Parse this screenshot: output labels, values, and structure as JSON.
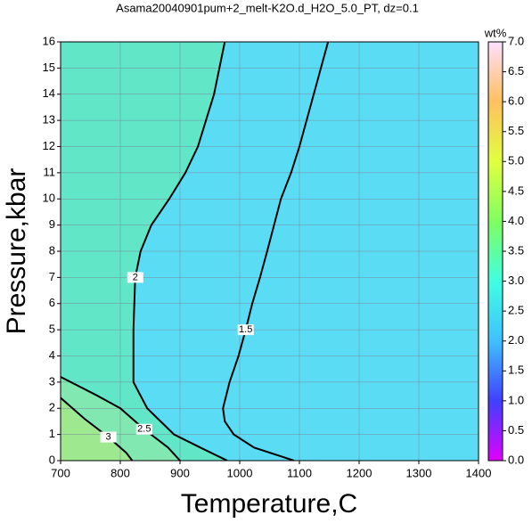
{
  "chart_data": {
    "type": "contour",
    "title": "Asama20040901pum+2_melt-K2O.d_H2O_5.0_PT, dz=0.1",
    "x_label": "Temperature,C",
    "y_label": "Pressure,kbar",
    "xlim": [
      700,
      1400
    ],
    "xticks": [
      700,
      800,
      900,
      1000,
      1100,
      1200,
      1300,
      1400
    ],
    "ylim": [
      0,
      16
    ],
    "yticks": [
      0,
      1,
      2,
      3,
      4,
      5,
      6,
      7,
      8,
      9,
      10,
      11,
      12,
      13,
      14,
      15,
      16
    ],
    "grid": true,
    "contours": [
      {
        "level": 1.5,
        "color": "#62b2ef",
        "x": [
          1148,
          1100,
          1086,
          1069,
          1046,
          1034,
          1021,
          1010,
          998,
          983,
          972,
          975,
          990,
          1024,
          1091
        ],
        "y": [
          16,
          12,
          11,
          10,
          8,
          7,
          6,
          5,
          4,
          3,
          2,
          1.5,
          1,
          0.5,
          0
        ]
      },
      {
        "level": 2,
        "color": "#5adcf5",
        "x": [
          975,
          957,
          930,
          909,
          882,
          852,
          834,
          825,
          822,
          822,
          845,
          890,
          934,
          979
        ],
        "y": [
          16,
          14,
          12,
          11,
          10,
          9,
          8,
          7,
          5,
          3,
          2,
          1,
          0.5,
          0
        ]
      },
      {
        "level": 2.5,
        "color": "#80e8b0",
        "x": [
          700,
          760,
          800,
          840,
          880,
          900
        ],
        "y": [
          3.2,
          2.5,
          2,
          1.2,
          0.5,
          0
        ]
      },
      {
        "level": 3,
        "color": "#9ee890",
        "x": [
          700,
          740,
          780,
          810,
          820
        ],
        "y": [
          2.4,
          1.6,
          0.9,
          0.3,
          0
        ]
      }
    ],
    "colorbar": {
      "label": "wt%",
      "lim": [
        0,
        7
      ],
      "colors": [
        "#e000ff",
        "#4040ff",
        "#40c0ff",
        "#40ffe0",
        "#80ff60",
        "#e0ff40",
        "#ffc060",
        "#ffe0ff"
      ],
      "ticks": [
        {
          "value": 0,
          "label": "0.0"
        },
        {
          "value": 0.5,
          "label": "0.5"
        },
        {
          "value": 1,
          "label": "1.0"
        },
        {
          "value": 1.5,
          "label": "1.5"
        },
        {
          "value": 2,
          "label": "2.0"
        },
        {
          "value": 2.5,
          "label": "2.5"
        },
        {
          "value": 3,
          "label": "3.0"
        },
        {
          "value": 3.5,
          "label": "3.5"
        },
        {
          "value": 4,
          "label": "4.0"
        },
        {
          "value": 4.5,
          "label": "4.5"
        },
        {
          "value": 5,
          "label": "5.0"
        },
        {
          "value": 5.5,
          "label": "5.5"
        },
        {
          "value": 6,
          "label": "6.0"
        },
        {
          "value": 6.5,
          "label": "6.5"
        },
        {
          "value": 7,
          "label": "7.0"
        }
      ]
    }
  }
}
